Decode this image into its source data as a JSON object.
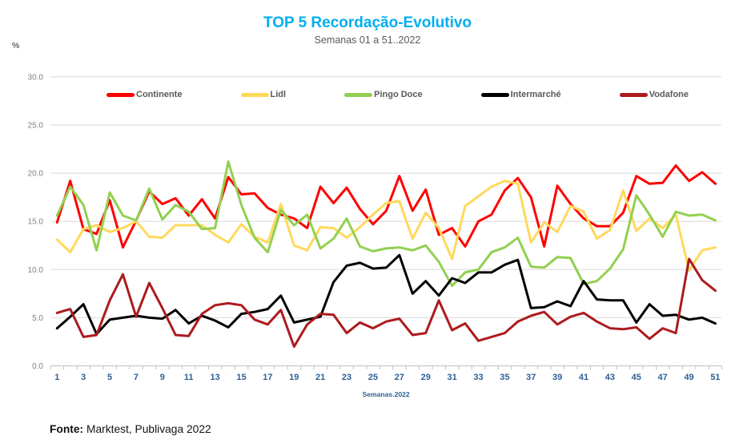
{
  "title": "TOP 5 Recordação-Evolutivo",
  "subtitle": "Semanas 01 a 51..2022",
  "y_axis_unit": "%",
  "x_axis_label": "Semanas.2022",
  "footer": {
    "label": "Fonte:",
    "text": " Marktest, Publivaga 2022"
  },
  "colors": {
    "title": "#00AEEF",
    "subtitle": "#595959",
    "gridline": "#D9D9D9",
    "axis_line": "#BFBFBF",
    "tick": "#BFBFBF",
    "y_tick_label": "#808080",
    "x_tick_label": "#2E5F94",
    "x_axis_label": "#2E5F94",
    "legend_text": "#595959",
    "background": "#FFFFFF"
  },
  "chart_data": {
    "type": "line",
    "title": "TOP 5 Recordação-Evolutivo",
    "subtitle": "Semanas 01 a 51..2022",
    "xlabel": "Semanas.2022",
    "ylabel": "%",
    "x": [
      1,
      2,
      3,
      4,
      5,
      6,
      7,
      8,
      9,
      10,
      11,
      12,
      13,
      14,
      15,
      16,
      17,
      18,
      19,
      20,
      21,
      22,
      23,
      24,
      25,
      26,
      27,
      28,
      29,
      30,
      31,
      32,
      33,
      34,
      35,
      36,
      37,
      38,
      39,
      40,
      41,
      42,
      43,
      44,
      45,
      46,
      47,
      48,
      49,
      50,
      51
    ],
    "x_tick_labels": [
      1,
      3,
      5,
      7,
      9,
      11,
      13,
      15,
      17,
      19,
      21,
      23,
      25,
      27,
      29,
      31,
      33,
      35,
      37,
      39,
      41,
      43,
      45,
      47,
      49,
      51
    ],
    "ylim": [
      0,
      30
    ],
    "y_ticks": [
      0,
      5,
      10,
      15,
      20,
      25,
      30
    ],
    "grid": true,
    "legend_position": "top",
    "series": [
      {
        "name": "Continente",
        "color": "#FE0000",
        "values": [
          14.9,
          19.2,
          14.2,
          13.7,
          17.2,
          12.3,
          15.1,
          18.1,
          16.8,
          17.4,
          15.6,
          17.3,
          15.3,
          19.6,
          17.8,
          17.9,
          16.4,
          15.7,
          15.3,
          14.3,
          18.6,
          16.9,
          18.5,
          16.3,
          14.7,
          16.1,
          19.7,
          16.1,
          18.3,
          13.6,
          14.3,
          12.4,
          15.0,
          15.7,
          18.2,
          19.5,
          17.5,
          12.4,
          18.7,
          16.8,
          15.3,
          14.5,
          14.5,
          15.9,
          19.7,
          18.9,
          19.0,
          20.8,
          19.2,
          20.1,
          18.9
        ]
      },
      {
        "name": "Lidl",
        "color": "#FFD95C",
        "values": [
          13.1,
          11.8,
          14.2,
          14.6,
          13.9,
          14.3,
          15.0,
          13.4,
          13.3,
          14.6,
          14.6,
          14.6,
          13.6,
          12.8,
          14.7,
          13.4,
          12.8,
          16.8,
          12.5,
          12.0,
          14.4,
          14.3,
          13.3,
          14.4,
          15.7,
          16.9,
          17.1,
          13.2,
          15.9,
          14.3,
          11.1,
          16.6,
          17.6,
          18.6,
          19.2,
          18.9,
          12.8,
          14.9,
          13.9,
          16.6,
          16.0,
          13.2,
          14.1,
          18.2,
          14.0,
          15.3,
          14.3,
          15.7,
          9.9,
          12.0,
          12.3
        ]
      },
      {
        "name": "Pingo Doce",
        "color": "#92D050",
        "values": [
          15.6,
          18.6,
          16.7,
          12.0,
          18.0,
          15.6,
          15.1,
          18.4,
          15.2,
          16.7,
          16.0,
          14.2,
          14.3,
          21.2,
          16.7,
          13.3,
          11.8,
          16.2,
          14.6,
          15.7,
          12.2,
          13.2,
          15.3,
          12.4,
          11.9,
          12.2,
          12.3,
          12.0,
          12.5,
          10.8,
          8.3,
          9.7,
          10.0,
          11.8,
          12.3,
          13.3,
          10.3,
          10.2,
          11.3,
          11.2,
          8.5,
          8.8,
          10.1,
          12.1,
          17.7,
          15.7,
          13.4,
          16.0,
          15.6,
          15.7,
          15.1
        ]
      },
      {
        "name": "Intermarché",
        "color": "#000000",
        "values": [
          3.9,
          5.1,
          6.4,
          3.3,
          4.8,
          5.0,
          5.2,
          5.0,
          4.9,
          5.8,
          4.4,
          5.2,
          4.7,
          4.0,
          5.4,
          5.6,
          5.9,
          7.3,
          4.5,
          4.8,
          5.1,
          8.7,
          10.4,
          10.7,
          10.1,
          10.2,
          11.5,
          7.5,
          8.8,
          7.3,
          9.1,
          8.6,
          9.7,
          9.7,
          10.5,
          11.0,
          6.0,
          6.1,
          6.7,
          6.2,
          8.8,
          6.9,
          6.8,
          6.8,
          4.5,
          6.4,
          5.2,
          5.3,
          4.8,
          5.0,
          4.4
        ]
      },
      {
        "name": "Vodafone",
        "color": "#AC1B1E",
        "values": [
          5.5,
          5.9,
          3.0,
          3.2,
          6.8,
          9.5,
          5.1,
          8.6,
          6.0,
          3.2,
          3.1,
          5.4,
          6.3,
          6.5,
          6.3,
          4.8,
          4.3,
          5.8,
          2.0,
          4.3,
          5.4,
          5.3,
          3.4,
          4.5,
          3.9,
          4.6,
          4.9,
          3.2,
          3.4,
          6.8,
          3.7,
          4.4,
          2.6,
          3.0,
          3.4,
          4.6,
          5.2,
          5.6,
          4.3,
          5.1,
          5.5,
          4.6,
          3.9,
          3.8,
          4.0,
          2.8,
          3.9,
          3.4,
          11.1,
          8.9,
          7.8
        ]
      }
    ]
  }
}
